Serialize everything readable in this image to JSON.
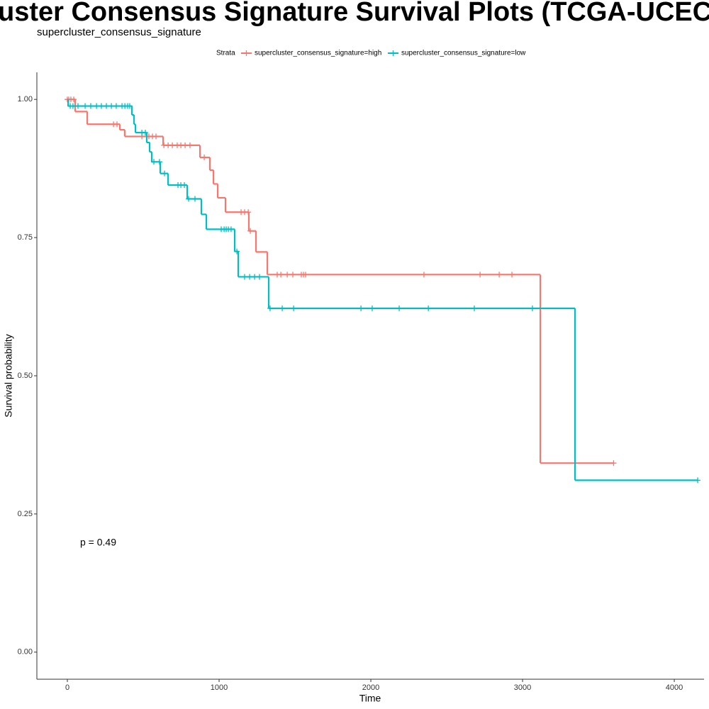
{
  "chart_data": {
    "type": "survival",
    "title": "uster Consensus Signature Survival Plots (TCGA-UCEC Deco",
    "subtitle": "supercluster_consensus_signature",
    "legend_title": "Strata",
    "x_label": "Time",
    "y_label": "Survival probability",
    "annotation": "p = 0.49",
    "xlim": [
      -201,
      4196
    ],
    "ylim": [
      -0.049,
      1.049
    ],
    "xticks": [
      0,
      1000,
      2000,
      3000,
      4000
    ],
    "yticks": [
      {
        "value": 0,
        "label": "0.00"
      },
      {
        "value": 0.25,
        "label": "0.25"
      },
      {
        "value": 0.5,
        "label": "0.50"
      },
      {
        "value": 0.75,
        "label": "0.75"
      },
      {
        "value": 1,
        "label": "1.00"
      }
    ],
    "series": [
      {
        "name": "supercluster_consensus_signature=high",
        "color": "#f8766d",
        "x": [
          0,
          51,
          131,
          346,
          378,
          631,
          874,
          939,
          963,
          991,
          1042,
          1196,
          1243,
          1318,
          3117,
          3603
        ],
        "y": [
          1.0,
          0.978,
          0.955,
          0.945,
          0.933,
          0.917,
          0.895,
          0.872,
          0.847,
          0.822,
          0.796,
          0.762,
          0.724,
          0.683,
          0.342,
          0.342
        ],
        "censor_x": [
          0,
          9,
          23,
          42,
          304,
          327,
          491,
          537,
          561,
          584,
          636,
          664,
          692,
          724,
          748,
          776,
          808,
          902,
          1145,
          1168,
          1192,
          1206,
          1383,
          1407,
          1449,
          1486,
          1542,
          1556,
          1570,
          2350,
          2720,
          2846,
          2930,
          3600
        ],
        "censor_y": [
          1.0,
          1.0,
          1.0,
          1.0,
          0.955,
          0.955,
          0.933,
          0.933,
          0.933,
          0.933,
          0.917,
          0.917,
          0.917,
          0.917,
          0.917,
          0.917,
          0.917,
          0.895,
          0.796,
          0.796,
          0.796,
          0.762,
          0.683,
          0.683,
          0.683,
          0.683,
          0.683,
          0.683,
          0.683,
          0.683,
          0.683,
          0.683,
          0.683,
          0.342
        ]
      },
      {
        "name": "supercluster_consensus_signature=low",
        "color": "#00bfc4",
        "x": [
          0,
          5,
          425,
          439,
          449,
          523,
          542,
          556,
          612,
          664,
          790,
          883,
          916,
          1103,
          1126,
          1327,
          3346,
          4154
        ],
        "y": [
          1.0,
          0.988,
          0.972,
          0.955,
          0.94,
          0.922,
          0.905,
          0.887,
          0.866,
          0.845,
          0.82,
          0.792,
          0.765,
          0.725,
          0.679,
          0.622,
          0.311,
          0.311
        ],
        "censor_x": [
          19,
          37,
          70,
          117,
          154,
          192,
          224,
          257,
          290,
          322,
          360,
          379,
          397,
          411,
          491,
          514,
          570,
          607,
          640,
          729,
          748,
          771,
          799,
          841,
          1014,
          1033,
          1047,
          1061,
          1079,
          1117,
          1168,
          1201,
          1234,
          1266,
          1336,
          1416,
          1491,
          1935,
          2009,
          2187,
          2379,
          2682,
          3065,
          4154
        ],
        "censor_y": [
          0.988,
          0.988,
          0.988,
          0.988,
          0.988,
          0.988,
          0.988,
          0.988,
          0.988,
          0.988,
          0.988,
          0.988,
          0.988,
          0.988,
          0.94,
          0.94,
          0.887,
          0.887,
          0.866,
          0.845,
          0.845,
          0.845,
          0.82,
          0.82,
          0.765,
          0.765,
          0.765,
          0.765,
          0.765,
          0.725,
          0.679,
          0.679,
          0.679,
          0.679,
          0.622,
          0.622,
          0.622,
          0.622,
          0.622,
          0.622,
          0.622,
          0.622,
          0.622,
          0.311
        ]
      }
    ]
  }
}
